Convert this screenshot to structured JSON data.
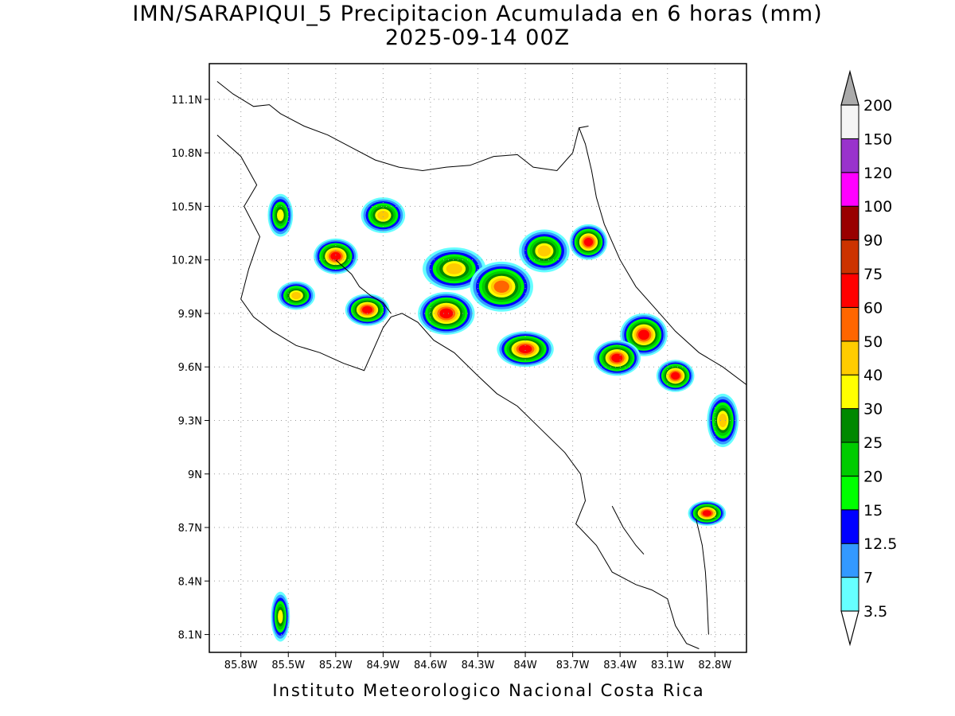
{
  "title": {
    "line1": "IMN/SARAPIQUI_5 Precipitacion Acumulada en 6 horas (mm)",
    "line2": "2025-09-14 00Z"
  },
  "footer": "Instituto Meteorologico Nacional Costa Rica",
  "map": {
    "lon_range": [
      -86.0,
      -82.6
    ],
    "lat_range": [
      8.0,
      11.3
    ],
    "x_ticks": [
      {
        "lon": -85.8,
        "label": "85.8W"
      },
      {
        "lon": -85.5,
        "label": "85.5W"
      },
      {
        "lon": -85.2,
        "label": "85.2W"
      },
      {
        "lon": -84.9,
        "label": "84.9W"
      },
      {
        "lon": -84.6,
        "label": "84.6W"
      },
      {
        "lon": -84.3,
        "label": "84.3W"
      },
      {
        "lon": -84.0,
        "label": "84W"
      },
      {
        "lon": -83.7,
        "label": "83.7W"
      },
      {
        "lon": -83.4,
        "label": "83.4W"
      },
      {
        "lon": -83.1,
        "label": "83.1W"
      },
      {
        "lon": -82.8,
        "label": "82.8W"
      }
    ],
    "y_ticks": [
      {
        "lat": 11.1,
        "label": "11.1N"
      },
      {
        "lat": 10.8,
        "label": "10.8N"
      },
      {
        "lat": 10.5,
        "label": "10.5N"
      },
      {
        "lat": 10.2,
        "label": "10.2N"
      },
      {
        "lat": 9.9,
        "label": "9.9N"
      },
      {
        "lat": 9.6,
        "label": "9.6N"
      },
      {
        "lat": 9.3,
        "label": "9.3N"
      },
      {
        "lat": 9.0,
        "label": "9N"
      },
      {
        "lat": 8.7,
        "label": "8.7N"
      },
      {
        "lat": 8.4,
        "label": "8.4N"
      },
      {
        "lat": 8.1,
        "label": "8.1N"
      }
    ],
    "grid_lines": true,
    "coastlines": [
      [
        [
          -85.95,
          11.2
        ],
        [
          -85.85,
          11.13
        ],
        [
          -85.72,
          11.06
        ],
        [
          -85.62,
          11.07
        ],
        [
          -85.55,
          11.02
        ],
        [
          -85.4,
          10.95
        ],
        [
          -85.25,
          10.9
        ],
        [
          -85.1,
          10.83
        ],
        [
          -84.95,
          10.76
        ],
        [
          -84.8,
          10.72
        ],
        [
          -84.65,
          10.7
        ],
        [
          -84.5,
          10.72
        ],
        [
          -84.35,
          10.73
        ],
        [
          -84.2,
          10.78
        ],
        [
          -84.05,
          10.79
        ],
        [
          -83.95,
          10.72
        ],
        [
          -83.8,
          10.7
        ],
        [
          -83.7,
          10.8
        ],
        [
          -83.66,
          10.94
        ],
        [
          -83.6,
          10.95
        ]
      ],
      [
        [
          -83.66,
          10.94
        ],
        [
          -83.62,
          10.85
        ],
        [
          -83.58,
          10.7
        ],
        [
          -83.55,
          10.55
        ],
        [
          -83.5,
          10.4
        ],
        [
          -83.4,
          10.2
        ],
        [
          -83.3,
          10.05
        ],
        [
          -83.2,
          9.95
        ],
        [
          -83.05,
          9.8
        ],
        [
          -82.9,
          9.68
        ],
        [
          -82.75,
          9.6
        ],
        [
          -82.6,
          9.5
        ]
      ],
      [
        [
          -85.95,
          10.9
        ],
        [
          -85.8,
          10.78
        ],
        [
          -85.7,
          10.62
        ],
        [
          -85.78,
          10.5
        ],
        [
          -85.68,
          10.33
        ],
        [
          -85.75,
          10.15
        ],
        [
          -85.8,
          9.98
        ],
        [
          -85.72,
          9.88
        ],
        [
          -85.6,
          9.8
        ],
        [
          -85.45,
          9.72
        ],
        [
          -85.3,
          9.68
        ],
        [
          -85.15,
          9.62
        ],
        [
          -85.02,
          9.58
        ],
        [
          -84.95,
          9.72
        ],
        [
          -84.9,
          9.82
        ],
        [
          -84.85,
          9.88
        ],
        [
          -84.78,
          9.9
        ],
        [
          -84.68,
          9.85
        ],
        [
          -84.58,
          9.75
        ],
        [
          -84.45,
          9.68
        ],
        [
          -84.3,
          9.55
        ],
        [
          -84.18,
          9.45
        ],
        [
          -84.05,
          9.38
        ],
        [
          -83.9,
          9.25
        ],
        [
          -83.75,
          9.12
        ],
        [
          -83.65,
          9.0
        ],
        [
          -83.62,
          8.85
        ],
        [
          -83.68,
          8.72
        ],
        [
          -83.55,
          8.6
        ],
        [
          -83.45,
          8.45
        ],
        [
          -83.3,
          8.38
        ],
        [
          -83.2,
          8.35
        ],
        [
          -83.1,
          8.3
        ],
        [
          -83.05,
          8.15
        ],
        [
          -82.98,
          8.05
        ],
        [
          -82.9,
          8.02
        ]
      ],
      [
        [
          -85.2,
          10.2
        ],
        [
          -85.1,
          10.12
        ],
        [
          -85.05,
          10.05
        ],
        [
          -84.98,
          10.0
        ],
        [
          -84.9,
          9.96
        ],
        [
          -84.85,
          9.9
        ]
      ],
      [
        [
          -83.45,
          8.82
        ],
        [
          -83.38,
          8.7
        ],
        [
          -83.3,
          8.6
        ],
        [
          -83.25,
          8.55
        ]
      ],
      [
        [
          -82.92,
          8.75
        ],
        [
          -82.88,
          8.6
        ],
        [
          -82.86,
          8.45
        ],
        [
          -82.85,
          8.3
        ],
        [
          -82.84,
          8.1
        ]
      ]
    ],
    "precip_cells": [
      {
        "lon": -85.2,
        "lat": 10.22,
        "rx": 0.14,
        "ry": 0.1,
        "peak": 65
      },
      {
        "lon": -85.45,
        "lat": 10.0,
        "rx": 0.12,
        "ry": 0.08,
        "peak": 40
      },
      {
        "lon": -85.0,
        "lat": 9.92,
        "rx": 0.14,
        "ry": 0.09,
        "peak": 65
      },
      {
        "lon": -84.5,
        "lat": 9.9,
        "rx": 0.18,
        "ry": 0.12,
        "peak": 70
      },
      {
        "lon": -84.45,
        "lat": 10.15,
        "rx": 0.2,
        "ry": 0.12,
        "peak": 40
      },
      {
        "lon": -84.15,
        "lat": 10.05,
        "rx": 0.2,
        "ry": 0.14,
        "peak": 50
      },
      {
        "lon": -83.88,
        "lat": 10.25,
        "rx": 0.16,
        "ry": 0.12,
        "peak": 45
      },
      {
        "lon": -83.6,
        "lat": 10.3,
        "rx": 0.12,
        "ry": 0.1,
        "peak": 65
      },
      {
        "lon": -84.0,
        "lat": 9.7,
        "rx": 0.18,
        "ry": 0.1,
        "peak": 65
      },
      {
        "lon": -83.25,
        "lat": 9.78,
        "rx": 0.15,
        "ry": 0.12,
        "peak": 70
      },
      {
        "lon": -83.42,
        "lat": 9.65,
        "rx": 0.15,
        "ry": 0.1,
        "peak": 60
      },
      {
        "lon": -83.05,
        "lat": 9.55,
        "rx": 0.12,
        "ry": 0.09,
        "peak": 65
      },
      {
        "lon": -82.75,
        "lat": 9.3,
        "rx": 0.1,
        "ry": 0.15,
        "peak": 40
      },
      {
        "lon": -82.85,
        "lat": 8.78,
        "rx": 0.12,
        "ry": 0.07,
        "peak": 65
      },
      {
        "lon": -85.55,
        "lat": 10.45,
        "rx": 0.08,
        "ry": 0.12,
        "peak": 35
      },
      {
        "lon": -84.9,
        "lat": 10.45,
        "rx": 0.14,
        "ry": 0.1,
        "peak": 40
      },
      {
        "lon": -85.55,
        "lat": 8.2,
        "rx": 0.06,
        "ry": 0.14,
        "peak": 35
      }
    ]
  },
  "colorbar": {
    "colors": [
      "#66ffff",
      "#3399ff",
      "#0000ff",
      "#00ff00",
      "#00cc00",
      "#008800",
      "#ffff00",
      "#ffcc00",
      "#ff6600",
      "#ff0000",
      "#cc3300",
      "#990000",
      "#ff00ff",
      "#9933cc",
      "#f5f5f5",
      "#aaaaaa"
    ],
    "labels": [
      "3.5",
      "7",
      "12.5",
      "15",
      "20",
      "25",
      "30",
      "40",
      "50",
      "60",
      "75",
      "90",
      "100",
      "120",
      "150",
      "200"
    ]
  }
}
